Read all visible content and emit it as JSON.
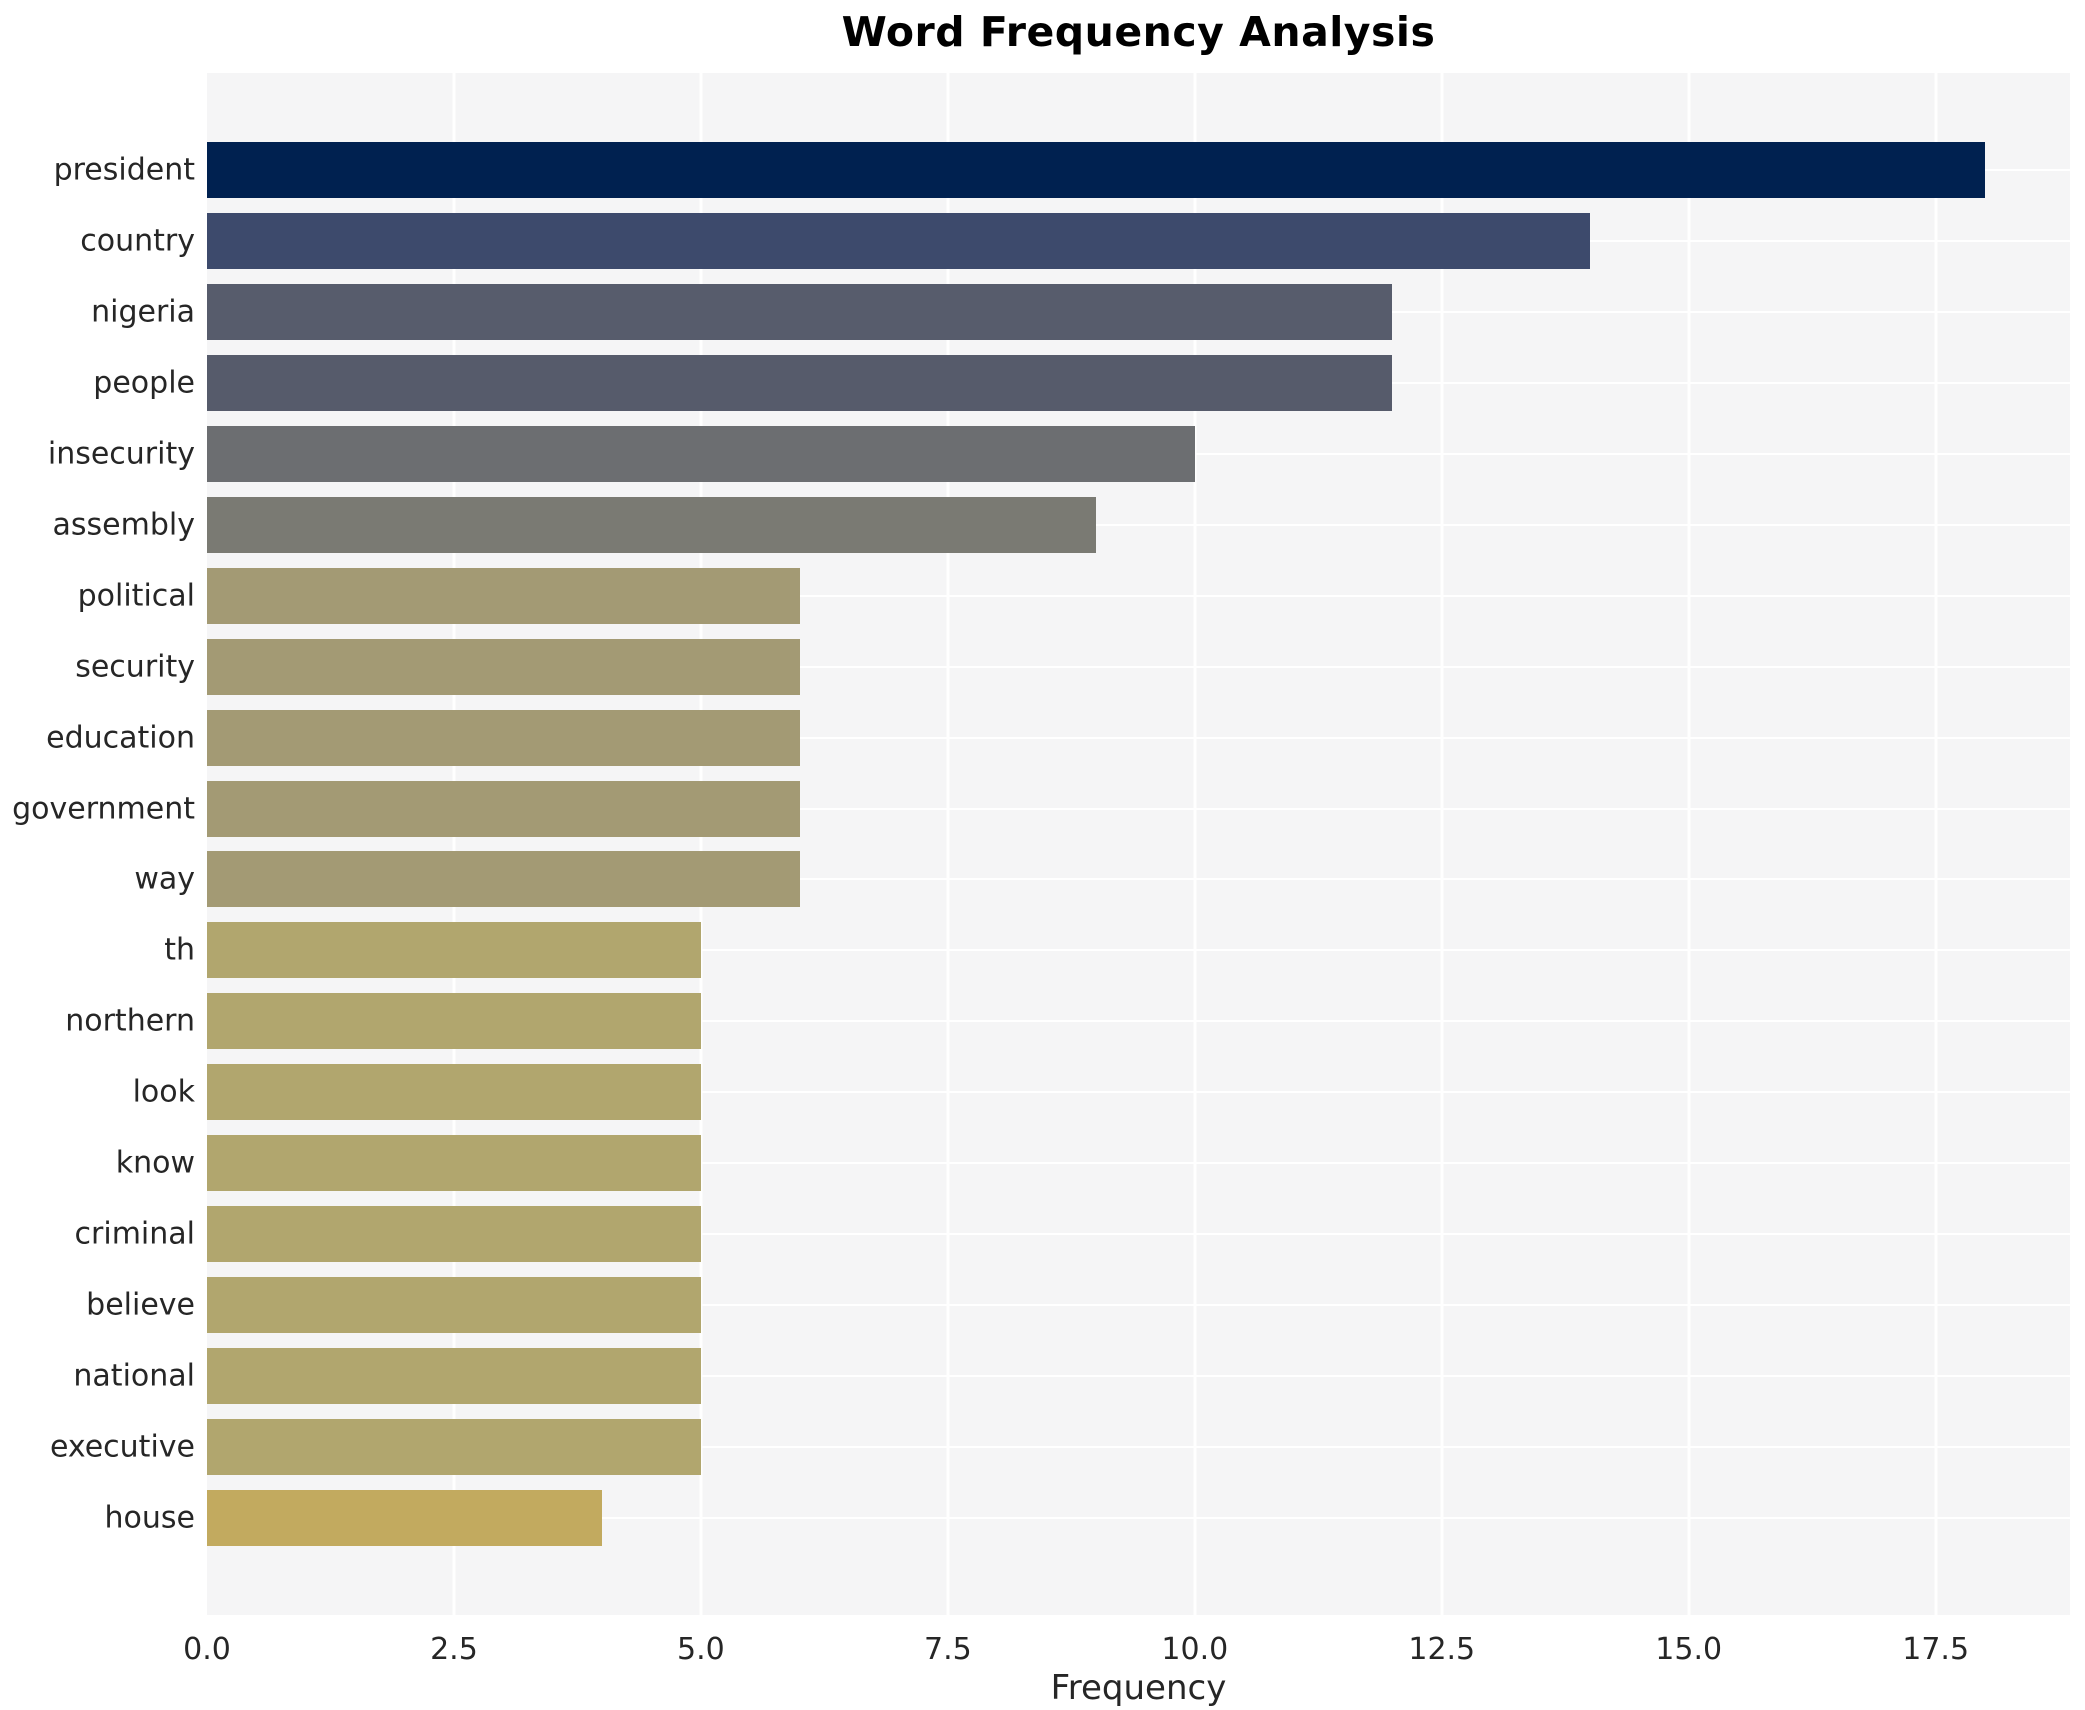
{
  "title": "Word Frequency Analysis",
  "chart_data": {
    "type": "bar",
    "orientation": "horizontal",
    "title": "Word Frequency Analysis",
    "xlabel": "Frequency",
    "ylabel": "",
    "legend": "none",
    "grid": "white gridlines on light gray panel, both axes",
    "xlim": [
      0,
      18.86
    ],
    "categories": [
      "president",
      "country",
      "nigeria",
      "people",
      "insecurity",
      "assembly",
      "political",
      "security",
      "education",
      "government",
      "way",
      "th",
      "northern",
      "look",
      "know",
      "criminal",
      "believe",
      "national",
      "executive",
      "house"
    ],
    "values": [
      18,
      14,
      12,
      12,
      10,
      9,
      6,
      6,
      6,
      6,
      6,
      5,
      5,
      5,
      5,
      5,
      5,
      5,
      5,
      4
    ],
    "bar_colors": [
      "#002150",
      "#3d4a6c",
      "#575c6c",
      "#565b6b",
      "#6c6e71",
      "#7a7a73",
      "#a39a74",
      "#a39a74",
      "#a39a74",
      "#a39a74",
      "#a39a74",
      "#b1a66e",
      "#b1a66e",
      "#b1a66e",
      "#b1a66e",
      "#b1a66e",
      "#b1a66e",
      "#b1a66e",
      "#b1a66e",
      "#c2aa5f"
    ],
    "xticks": {
      "values": [
        0,
        2.5,
        5,
        7.5,
        10,
        12.5,
        15,
        17.5
      ],
      "labels": [
        "0.0",
        "2.5",
        "5.0",
        "7.5",
        "10.0",
        "12.5",
        "15.0",
        "17.5"
      ]
    },
    "colors": {
      "plot_background": "#f5f5f6",
      "figure_background": "#ffffff",
      "grid": "#ffffff",
      "text": "#262626",
      "title_text": "#000000"
    }
  }
}
